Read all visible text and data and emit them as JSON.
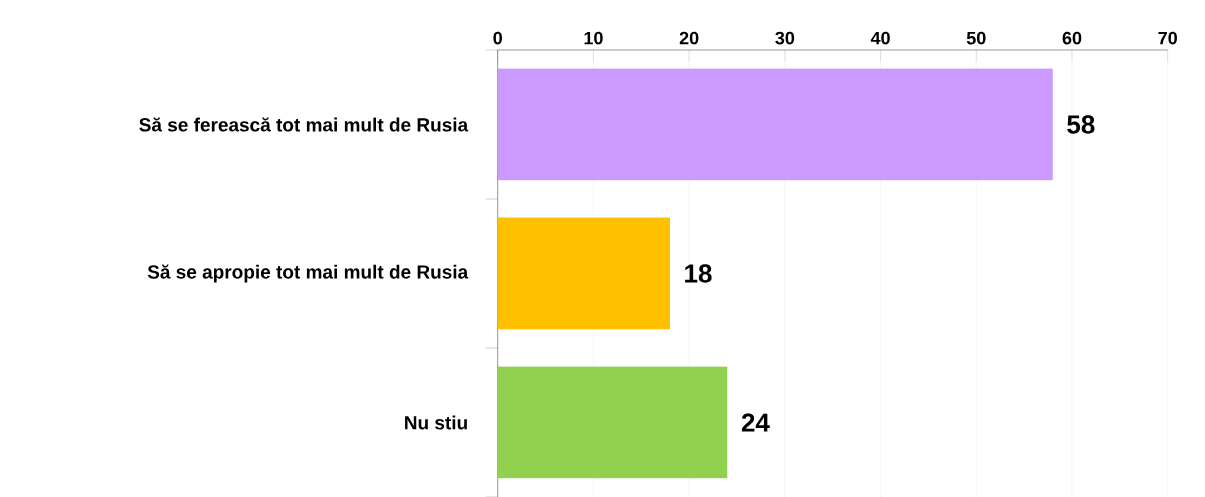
{
  "chart_data": {
    "type": "bar",
    "orientation": "horizontal",
    "categories": [
      "Să se ferească tot mai mult de Rusia",
      "Să se apropie tot mai mult de Rusia",
      "Nu stiu"
    ],
    "values": [
      58,
      18,
      24
    ],
    "colors": [
      "#cc99ff",
      "#ffc000",
      "#92d050"
    ],
    "xlim": [
      0,
      70
    ],
    "xticks": [
      0,
      10,
      20,
      30,
      40,
      50,
      60,
      70
    ],
    "grid": "x",
    "data_labels": true
  }
}
